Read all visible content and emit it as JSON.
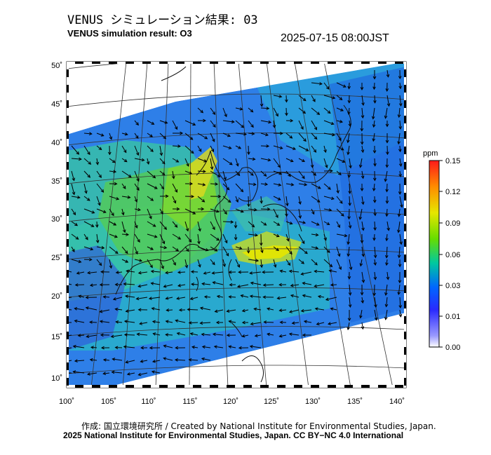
{
  "header": {
    "title_ja": "VENUS シミュレーション結果: 03",
    "title_en": "VENUS simulation result: O3",
    "timestamp": "2025-07-15 08:00JST"
  },
  "map": {
    "lat_labels": [
      "50˚",
      "45˚",
      "40˚",
      "35˚",
      "30˚",
      "25˚",
      "20˚",
      "15˚",
      "10˚"
    ],
    "lon_labels": [
      "100˚",
      "105˚",
      "110˚",
      "115˚",
      "120˚",
      "125˚",
      "130˚",
      "135˚",
      "140˚"
    ],
    "colors": {
      "background": "#1a73e8",
      "land_line": "#222222"
    }
  },
  "colorbar": {
    "unit": "ppm",
    "ticks": [
      "0.15",
      "0.12",
      "0.09",
      "0.06",
      "0.03",
      "0.01",
      "0.00"
    ],
    "colors": [
      "#ff1a1a",
      "#ff8c00",
      "#e6e600",
      "#66dd00",
      "#00c8a0",
      "#0066ff",
      "#2a2aff",
      "#b8b8ff",
      "#ffffff"
    ]
  },
  "footer": {
    "credit": "作成: 国立環境研究所 / Created by National Institute for Environmental Studies, Japan.",
    "copyright": "2025 National Institute for Environmental Studies, Japan. CC BY−NC 4.0 International"
  }
}
